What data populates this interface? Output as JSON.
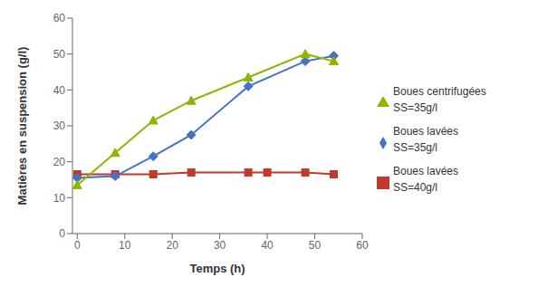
{
  "chart_data": {
    "type": "line",
    "xlabel": "Temps (h)",
    "ylabel": "Matières en suspension (g/l)",
    "xlim": [
      -1,
      60
    ],
    "ylim": [
      0,
      60
    ],
    "xticks": [
      0,
      10,
      20,
      30,
      40,
      50,
      60
    ],
    "yticks": [
      0,
      10,
      20,
      30,
      40,
      50,
      60
    ],
    "grid": false,
    "legend": "right",
    "series": [
      {
        "name": "Boues lavées\nSS=40g/l",
        "color": "#c0392b",
        "marker": "square",
        "x": [
          0,
          8,
          16,
          24,
          36,
          40,
          48,
          54
        ],
        "values": [
          16.5,
          16.5,
          16.5,
          17.0,
          17.0,
          17.0,
          17.0,
          16.5
        ]
      },
      {
        "name": "Boues lavées\nSS=35g/l",
        "color": "#4472c4",
        "marker": "diamond",
        "x": [
          0,
          8,
          16,
          24,
          36,
          48,
          54
        ],
        "values": [
          15.5,
          16.0,
          21.5,
          27.5,
          41.0,
          48.0,
          49.5
        ]
      },
      {
        "name": "Boues centrifugées\nSS=35g/l",
        "color": "#8db600",
        "marker": "triangle",
        "x": [
          0,
          8,
          16,
          24,
          36,
          48,
          54
        ],
        "values": [
          13.5,
          22.5,
          31.5,
          37.0,
          43.5,
          50.0,
          48.0
        ]
      }
    ]
  }
}
